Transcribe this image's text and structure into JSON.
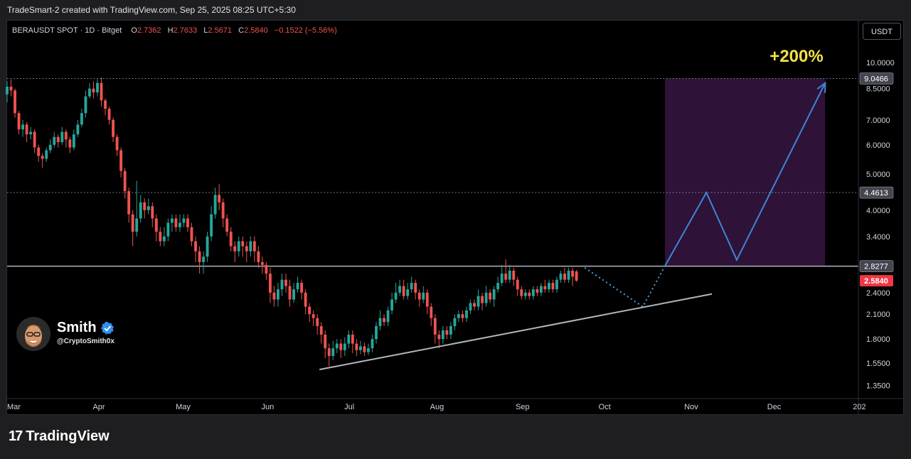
{
  "header": {
    "created_text": "TradeSmart-2 created with TradingView.com, Sep 25, 2025 08:25 UTC+5:30"
  },
  "legend": {
    "symbol": "BERAUSDT SPOT · 1D · Bitget",
    "o_label": "O",
    "o_value": "2.7362",
    "h_label": "H",
    "h_value": "2.7633",
    "l_label": "L",
    "l_value": "2.5671",
    "c_label": "C",
    "c_value": "2.5840",
    "change": "−0.1522 (−5.56%)"
  },
  "currency_button": "USDT",
  "annotation": {
    "target_text": "+200%",
    "zone_color": "#2e1238",
    "arrow_color": "#3d86d8",
    "text_color": "#f5e04a"
  },
  "author": {
    "name": "Smith",
    "handle": "@CryptoSmith0x"
  },
  "brand": {
    "logo_mark": "17",
    "logo_text": "TradingView"
  },
  "colors": {
    "up": "#26a69a",
    "down": "#ef5350",
    "price_tag": "#f23645"
  },
  "chart_data": {
    "type": "candlestick",
    "scale": "log",
    "ylim": [
      1.25,
      11.3
    ],
    "y_ticks": [
      "10.0000",
      "8.5000",
      "7.0000",
      "6.0000",
      "5.0000",
      "4.0000",
      "3.4000",
      "2.4000",
      "2.1000",
      "1.8000",
      "1.5500",
      "1.3500"
    ],
    "y_tick_values": [
      10.0,
      8.5,
      7.0,
      6.0,
      5.0,
      4.0,
      3.4,
      2.4,
      2.1,
      1.8,
      1.55,
      1.35
    ],
    "x_ticks": [
      "Mar",
      "Apr",
      "May",
      "Jun",
      "Jul",
      "Aug",
      "Sep",
      "Oct",
      "Nov",
      "Dec",
      "202"
    ],
    "x_tick_days": [
      0,
      31,
      61,
      92,
      122,
      153,
      184,
      214,
      245,
      275,
      306
    ],
    "x_range_days": [
      0,
      308
    ],
    "levels": [
      {
        "value": 9.0466,
        "label": "9.0466",
        "style": "dotted"
      },
      {
        "value": 4.4613,
        "label": "4.4613",
        "style": "dotted"
      },
      {
        "value": 2.8277,
        "label": "2.8277",
        "style": "solid"
      }
    ],
    "last_price": {
      "value": 2.584,
      "label": "2.5840"
    },
    "trendline": [
      {
        "day": 113,
        "price": 1.49
      },
      {
        "day": 255,
        "price": 2.38
      }
    ],
    "projection_dotted": [
      {
        "day": 209,
        "price": 2.8
      },
      {
        "day": 230,
        "price": 2.2
      },
      {
        "day": 238,
        "price": 2.83
      }
    ],
    "projection_arrow": [
      {
        "day": 238,
        "price": 2.83
      },
      {
        "day": 253,
        "price": 4.46
      },
      {
        "day": 264,
        "price": 2.94
      },
      {
        "day": 296,
        "price": 8.8
      }
    ],
    "target_zone": {
      "day_start": 238,
      "day_end": 296,
      "price_low": 2.8277,
      "price_high": 9.0466
    },
    "candles": [
      [
        8.2,
        8.6,
        8.9,
        7.8
      ],
      [
        8.6,
        8.4,
        9.0,
        8.1
      ],
      [
        8.4,
        7.3,
        8.5,
        7.1
      ],
      [
        7.3,
        6.6,
        7.4,
        6.4
      ],
      [
        6.6,
        6.8,
        7.0,
        6.3
      ],
      [
        6.8,
        6.4,
        6.9,
        6.1
      ],
      [
        6.4,
        6.5,
        6.7,
        6.2
      ],
      [
        6.5,
        5.9,
        6.6,
        5.7
      ],
      [
        5.9,
        5.6,
        6.0,
        5.4
      ],
      [
        5.6,
        5.5,
        5.7,
        5.2
      ],
      [
        5.5,
        5.8,
        5.9,
        5.4
      ],
      [
        5.8,
        6.0,
        6.2,
        5.7
      ],
      [
        6.0,
        6.3,
        6.5,
        5.9
      ],
      [
        6.3,
        6.1,
        6.4,
        5.9
      ],
      [
        6.1,
        6.5,
        6.7,
        6.0
      ],
      [
        6.5,
        6.2,
        6.6,
        5.9
      ],
      [
        6.2,
        5.9,
        6.3,
        5.7
      ],
      [
        5.9,
        6.4,
        6.6,
        5.8
      ],
      [
        6.4,
        6.8,
        7.0,
        6.3
      ],
      [
        6.8,
        7.3,
        7.5,
        6.7
      ],
      [
        7.3,
        8.1,
        8.4,
        7.1
      ],
      [
        8.1,
        8.5,
        8.8,
        8.0
      ],
      [
        8.5,
        8.3,
        8.9,
        8.0
      ],
      [
        8.3,
        8.8,
        9.0,
        8.1
      ],
      [
        8.8,
        7.9,
        9.1,
        7.6
      ],
      [
        7.9,
        7.5,
        8.0,
        7.2
      ],
      [
        7.5,
        7.0,
        7.6,
        6.8
      ],
      [
        7.0,
        6.3,
        7.1,
        6.1
      ],
      [
        6.3,
        5.8,
        6.4,
        5.6
      ],
      [
        5.8,
        5.1,
        5.9,
        4.9
      ],
      [
        5.1,
        4.5,
        5.2,
        4.3
      ],
      [
        4.5,
        3.9,
        4.6,
        3.7
      ],
      [
        3.9,
        3.5,
        4.0,
        3.2
      ],
      [
        3.5,
        3.8,
        4.8,
        3.4
      ],
      [
        3.8,
        4.2,
        4.4,
        3.7
      ],
      [
        4.2,
        4.0,
        4.3,
        3.8
      ],
      [
        4.0,
        4.1,
        4.3,
        3.9
      ],
      [
        4.1,
        3.8,
        4.2,
        3.6
      ],
      [
        3.8,
        3.5,
        3.9,
        3.3
      ],
      [
        3.5,
        3.3,
        3.6,
        3.2
      ],
      [
        3.3,
        3.4,
        3.6,
        3.2
      ],
      [
        3.4,
        3.7,
        3.8,
        3.3
      ],
      [
        3.7,
        3.8,
        3.9,
        3.5
      ],
      [
        3.8,
        3.6,
        3.9,
        3.5
      ],
      [
        3.6,
        3.7,
        3.9,
        3.5
      ],
      [
        3.7,
        3.8,
        3.9,
        3.6
      ],
      [
        3.8,
        3.6,
        3.9,
        3.5
      ],
      [
        3.6,
        3.3,
        3.7,
        3.2
      ],
      [
        3.3,
        3.1,
        3.4,
        2.9
      ],
      [
        3.1,
        2.9,
        3.2,
        2.7
      ],
      [
        2.9,
        3.0,
        3.1,
        2.7
      ],
      [
        3.0,
        3.4,
        3.5,
        2.9
      ],
      [
        3.4,
        3.9,
        4.1,
        3.3
      ],
      [
        3.9,
        4.4,
        4.6,
        3.8
      ],
      [
        4.4,
        4.2,
        4.7,
        4.0
      ],
      [
        4.2,
        3.8,
        4.3,
        3.6
      ],
      [
        3.8,
        3.5,
        3.9,
        3.4
      ],
      [
        3.5,
        3.2,
        3.6,
        3.1
      ],
      [
        3.2,
        3.1,
        3.3,
        2.9
      ],
      [
        3.1,
        3.3,
        3.4,
        3.0
      ],
      [
        3.3,
        3.2,
        3.4,
        3.0
      ],
      [
        3.2,
        3.1,
        3.3,
        2.9
      ],
      [
        3.1,
        3.3,
        3.4,
        3.0
      ],
      [
        3.3,
        3.1,
        3.4,
        2.9
      ],
      [
        3.1,
        2.9,
        3.2,
        2.8
      ],
      [
        2.9,
        2.85,
        3.0,
        2.7
      ],
      [
        2.85,
        2.7,
        2.9,
        2.6
      ],
      [
        2.7,
        2.4,
        2.8,
        2.25
      ],
      [
        2.4,
        2.3,
        2.5,
        2.2
      ],
      [
        2.3,
        2.45,
        2.55,
        2.2
      ],
      [
        2.45,
        2.6,
        2.7,
        2.35
      ],
      [
        2.6,
        2.5,
        2.7,
        2.4
      ],
      [
        2.5,
        2.3,
        2.6,
        2.2
      ],
      [
        2.3,
        2.45,
        2.55,
        2.25
      ],
      [
        2.45,
        2.55,
        2.65,
        2.4
      ],
      [
        2.55,
        2.4,
        2.6,
        2.3
      ],
      [
        2.4,
        2.2,
        2.45,
        2.1
      ],
      [
        2.2,
        2.1,
        2.25,
        2.0
      ],
      [
        2.1,
        2.05,
        2.15,
        1.95
      ],
      [
        2.05,
        1.95,
        2.1,
        1.85
      ],
      [
        1.95,
        1.85,
        2.0,
        1.75
      ],
      [
        1.85,
        1.7,
        1.9,
        1.6
      ],
      [
        1.7,
        1.62,
        1.75,
        1.52
      ],
      [
        1.62,
        1.7,
        1.78,
        1.58
      ],
      [
        1.7,
        1.75,
        1.8,
        1.65
      ],
      [
        1.75,
        1.68,
        1.8,
        1.6
      ],
      [
        1.68,
        1.75,
        1.82,
        1.62
      ],
      [
        1.75,
        1.85,
        1.9,
        1.7
      ],
      [
        1.85,
        1.75,
        1.9,
        1.65
      ],
      [
        1.75,
        1.68,
        1.8,
        1.62
      ],
      [
        1.68,
        1.72,
        1.78,
        1.64
      ],
      [
        1.72,
        1.66,
        1.76,
        1.62
      ],
      [
        1.66,
        1.7,
        1.75,
        1.63
      ],
      [
        1.7,
        1.8,
        1.85,
        1.66
      ],
      [
        1.8,
        1.95,
        2.0,
        1.75
      ],
      [
        1.95,
        2.05,
        2.15,
        1.9
      ],
      [
        2.05,
        2.0,
        2.1,
        1.95
      ],
      [
        2.0,
        2.15,
        2.2,
        1.95
      ],
      [
        2.15,
        2.3,
        2.4,
        2.1
      ],
      [
        2.3,
        2.4,
        2.55,
        2.25
      ],
      [
        2.4,
        2.5,
        2.6,
        2.35
      ],
      [
        2.5,
        2.35,
        2.6,
        2.3
      ],
      [
        2.35,
        2.45,
        2.55,
        2.3
      ],
      [
        2.45,
        2.55,
        2.65,
        2.4
      ],
      [
        2.55,
        2.4,
        2.6,
        2.3
      ],
      [
        2.4,
        2.3,
        2.45,
        2.2
      ],
      [
        2.3,
        2.4,
        2.5,
        2.25
      ],
      [
        2.4,
        2.2,
        2.45,
        2.1
      ],
      [
        2.2,
        2.05,
        2.25,
        1.95
      ],
      [
        2.05,
        1.85,
        2.1,
        1.75
      ],
      [
        1.85,
        1.8,
        1.9,
        1.7
      ],
      [
        1.8,
        1.9,
        1.95,
        1.75
      ],
      [
        1.9,
        1.85,
        1.95,
        1.8
      ],
      [
        1.85,
        1.95,
        2.0,
        1.8
      ],
      [
        1.95,
        2.05,
        2.1,
        1.9
      ],
      [
        2.05,
        2.1,
        2.15,
        2.0
      ],
      [
        2.1,
        2.05,
        2.15,
        2.0
      ],
      [
        2.05,
        2.15,
        2.2,
        2.0
      ],
      [
        2.15,
        2.25,
        2.3,
        2.1
      ],
      [
        2.25,
        2.2,
        2.3,
        2.15
      ],
      [
        2.2,
        2.35,
        2.45,
        2.15
      ],
      [
        2.35,
        2.25,
        2.4,
        2.15
      ],
      [
        2.25,
        2.4,
        2.5,
        2.2
      ],
      [
        2.4,
        2.3,
        2.45,
        2.25
      ],
      [
        2.3,
        2.45,
        2.5,
        2.2
      ],
      [
        2.45,
        2.55,
        2.65,
        2.4
      ],
      [
        2.55,
        2.7,
        2.85,
        2.5
      ],
      [
        2.7,
        2.6,
        2.95,
        2.55
      ],
      [
        2.6,
        2.75,
        2.85,
        2.55
      ],
      [
        2.75,
        2.6,
        2.8,
        2.5
      ],
      [
        2.6,
        2.45,
        2.65,
        2.35
      ],
      [
        2.45,
        2.35,
        2.5,
        2.3
      ],
      [
        2.35,
        2.4,
        2.45,
        2.3
      ],
      [
        2.4,
        2.35,
        2.45,
        2.3
      ],
      [
        2.35,
        2.45,
        2.5,
        2.3
      ],
      [
        2.45,
        2.4,
        2.5,
        2.35
      ],
      [
        2.4,
        2.5,
        2.55,
        2.35
      ],
      [
        2.5,
        2.45,
        2.6,
        2.4
      ],
      [
        2.45,
        2.55,
        2.6,
        2.4
      ],
      [
        2.55,
        2.45,
        2.6,
        2.4
      ],
      [
        2.45,
        2.6,
        2.65,
        2.4
      ],
      [
        2.6,
        2.7,
        2.75,
        2.55
      ],
      [
        2.7,
        2.6,
        2.8,
        2.55
      ],
      [
        2.6,
        2.75,
        2.8,
        2.55
      ],
      [
        2.75,
        2.65,
        2.8,
        2.5
      ],
      [
        2.736,
        2.584,
        2.763,
        2.567
      ]
    ]
  }
}
